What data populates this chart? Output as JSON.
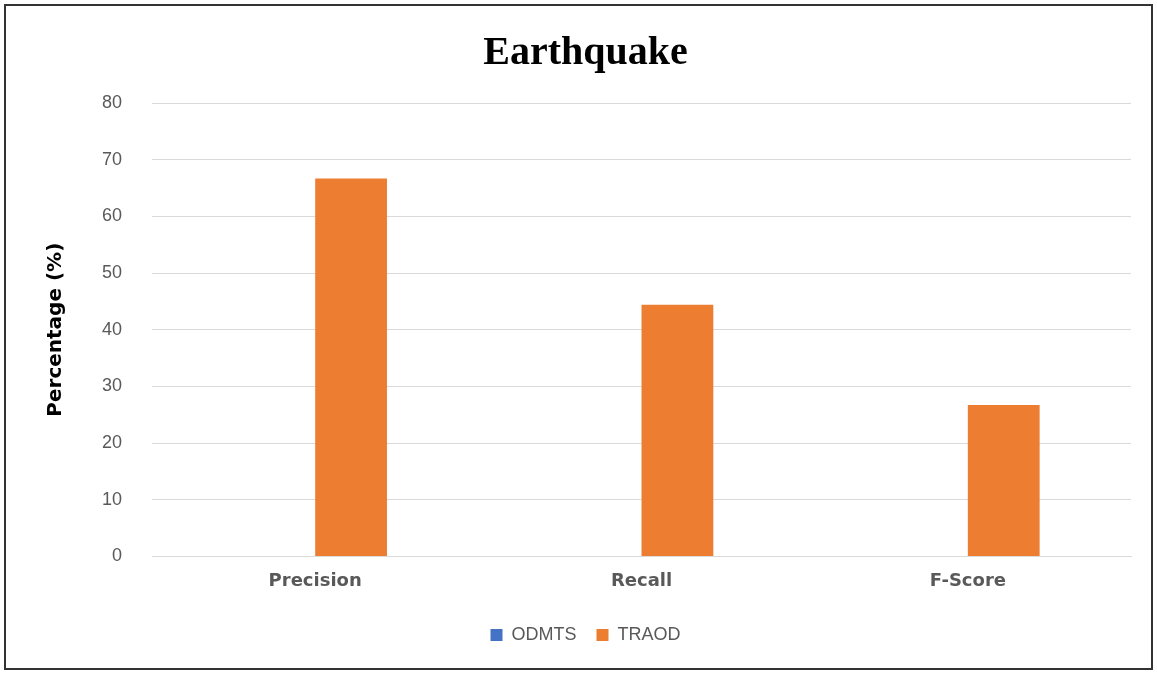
{
  "chart_data": {
    "type": "bar",
    "title": "Earthquake",
    "ylabel": "Percentage (%)",
    "categories": [
      "Precision",
      "Recall",
      "F-Score"
    ],
    "series": [
      {
        "name": "ODMTS",
        "color": "#4472c4",
        "values": [
          0,
          0,
          0
        ]
      },
      {
        "name": "TRAOD",
        "color": "#ed7d31",
        "values": [
          66.7,
          44.4,
          26.7
        ]
      }
    ],
    "ylim": [
      0,
      80
    ],
    "yticks": [
      0,
      10,
      20,
      30,
      40,
      50,
      60,
      70,
      80
    ],
    "grid": "y",
    "legend": "bottom"
  }
}
